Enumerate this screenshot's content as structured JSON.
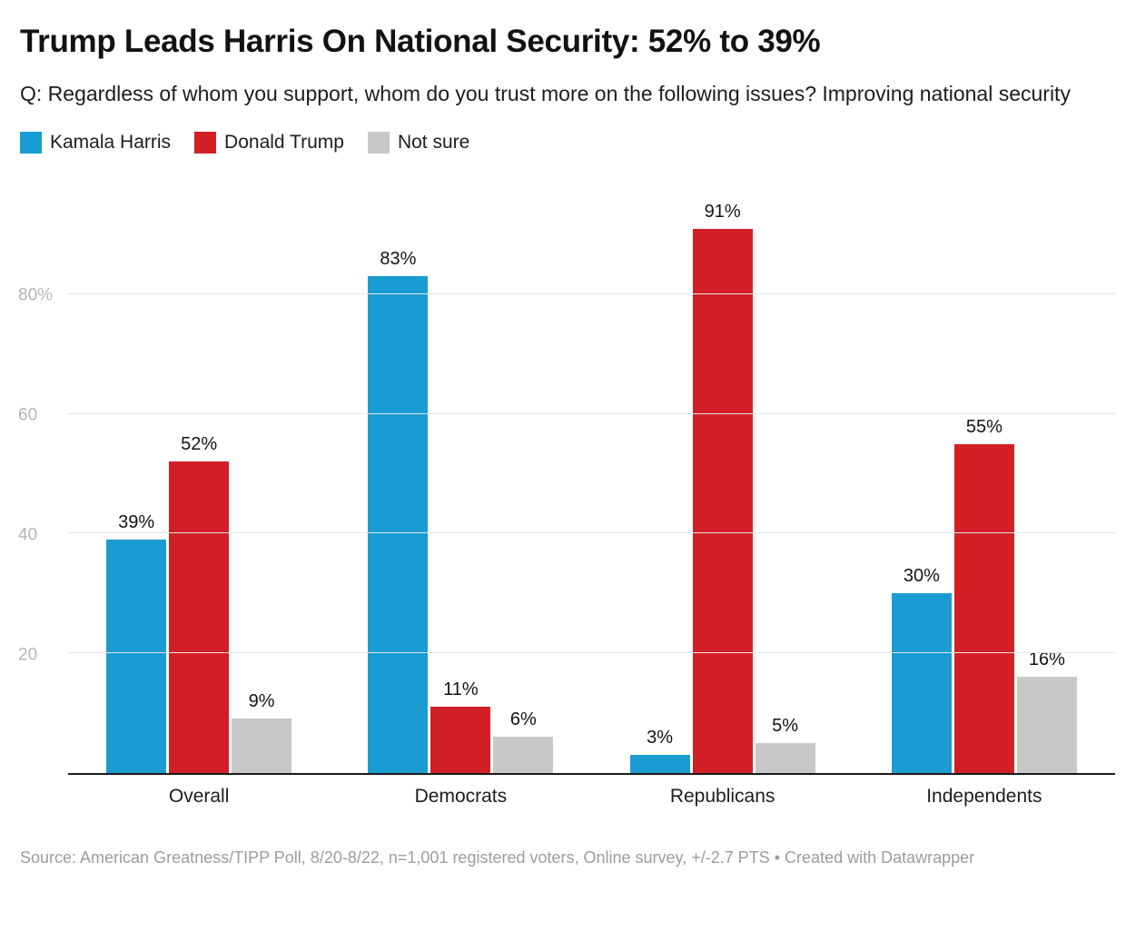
{
  "chart_data": {
    "type": "bar",
    "title": "Trump Leads Harris On National Security: 52% to 39%",
    "subtitle": "Q: Regardless of whom you support, whom do you trust more on the following issues? Improving national security",
    "categories": [
      "Overall",
      "Democrats",
      "Republicans",
      "Independents"
    ],
    "series": [
      {
        "name": "Kamala Harris",
        "color": "#1a9cd3",
        "values": [
          39,
          83,
          3,
          30
        ]
      },
      {
        "name": "Donald Trump",
        "color": "#d21f26",
        "values": [
          52,
          11,
          91,
          55
        ]
      },
      {
        "name": "Not sure",
        "color": "#c8c8c8",
        "values": [
          9,
          6,
          5,
          16
        ]
      }
    ],
    "value_suffix": "%",
    "ylim": [
      0,
      100
    ],
    "yticks": [
      {
        "value": 20,
        "label": "20"
      },
      {
        "value": 40,
        "label": "40"
      },
      {
        "value": 60,
        "label": "60"
      },
      {
        "value": 80,
        "label": "80%"
      }
    ],
    "grid": true,
    "legend_position": "top",
    "xlabel": "",
    "ylabel": ""
  },
  "footer": {
    "text": "Source: American Greatness/TIPP Poll, 8/20-8/22, n=1,001 registered voters, Online survey, +/-2.7 PTS • Created with Datawrapper"
  }
}
